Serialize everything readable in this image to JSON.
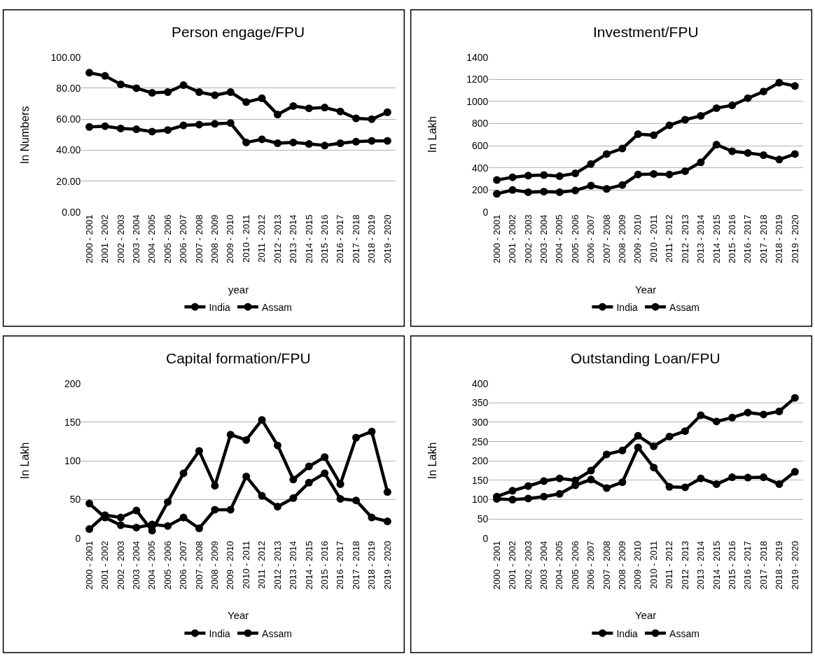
{
  "chart_data": [
    {
      "type": "line",
      "title": "Person engage/FPU",
      "xlabel": "year",
      "ylabel": "In Numbers",
      "categories": [
        "2000 - 2001",
        "2001 - 2002",
        "2002 - 2003",
        "2003 - 2004",
        "2004 - 2005",
        "2005 - 2006",
        "2006 - 2007",
        "2007 - 2008",
        "2008 - 2009",
        "2009 - 2010",
        "2010 - 2011",
        "2011 - 2012",
        "2012 - 2013",
        "2013 - 2014",
        "2014 - 2015",
        "2015 - 2016",
        "2016 - 2017",
        "2017 - 2018",
        "2018 - 2019",
        "2019 - 2020"
      ],
      "ylim": [
        0,
        100
      ],
      "yticks": [
        {
          "value": 0,
          "label": "0.00"
        },
        {
          "value": 20,
          "label": "20.00"
        },
        {
          "value": 40,
          "label": "40.00"
        },
        {
          "value": 60,
          "label": "60.00"
        },
        {
          "value": 80,
          "label": "80.00"
        },
        {
          "value": 100,
          "label": "100.00"
        }
      ],
      "grid": "y",
      "legend": "bottom",
      "marker": "circle",
      "line_style": "solid",
      "series": [
        {
          "name": "India",
          "color": "#000000",
          "values": [
            90,
            88,
            82.5,
            80,
            77,
            77.5,
            82,
            77.5,
            75.5,
            77.5,
            71,
            73.5,
            63,
            68.5,
            67,
            67.5,
            65,
            60.5,
            60,
            64.5
          ]
        },
        {
          "name": "Assam",
          "color": "#000000",
          "values": [
            55,
            55.5,
            54,
            53.5,
            52,
            53,
            56,
            56.5,
            57,
            57.5,
            45,
            47,
            44.5,
            45,
            44,
            43,
            44.5,
            45.5,
            46,
            46
          ]
        }
      ]
    },
    {
      "type": "line",
      "title": "Investment/FPU",
      "xlabel": "Year",
      "ylabel": "In Lakh",
      "categories": [
        "2000 - 2001",
        "2001 - 2002",
        "2002 - 2003",
        "2003 - 2004",
        "2004 - 2005",
        "2005 - 2006",
        "2006 - 2007",
        "2007 - 2008",
        "2008 - 2009",
        "2009 - 2010",
        "2010 - 2011",
        "2011 - 2012",
        "2012 - 2013",
        "2013 - 2014",
        "2014 - 2015",
        "2015 - 2016",
        "2016 - 2017",
        "2017 - 2018",
        "2018 - 2019",
        "2019 - 2020"
      ],
      "ylim": [
        0,
        1400
      ],
      "yticks": [
        0,
        200,
        400,
        600,
        800,
        1000,
        1200,
        1400
      ],
      "grid": "y",
      "legend": "bottom",
      "marker": "circle",
      "line_style": "solid",
      "series": [
        {
          "name": "India",
          "color": "#000000",
          "values": [
            290,
            315,
            330,
            335,
            325,
            350,
            435,
            525,
            575,
            705,
            695,
            785,
            835,
            870,
            940,
            965,
            1030,
            1090,
            1170,
            1140
          ]
        },
        {
          "name": "Assam",
          "color": "#000000",
          "values": [
            165,
            200,
            180,
            185,
            180,
            195,
            240,
            210,
            245,
            340,
            345,
            340,
            370,
            450,
            610,
            550,
            535,
            515,
            475,
            525
          ]
        }
      ]
    },
    {
      "type": "line",
      "title": "Capital formation/FPU",
      "xlabel": "Year",
      "ylabel": "In Lakh",
      "categories": [
        "2000 - 2001",
        "2001 - 2002",
        "2002 - 2003",
        "2003 - 2004",
        "2004 - 2005",
        "2005 - 2006",
        "2006 - 2007",
        "2007 - 2008",
        "2008 - 2009",
        "2009 - 2010",
        "2010 - 2011",
        "2011 - 2012",
        "2012 - 2013",
        "2013 - 2014",
        "2014 - 2015",
        "2015 - 2016",
        "2016 - 2017",
        "2017 - 2018",
        "2018 - 2019",
        "2019 - 2020"
      ],
      "ylim": [
        0,
        200
      ],
      "yticks": [
        0,
        50,
        100,
        150,
        200
      ],
      "grid": "y",
      "legend": "bottom",
      "marker": "circle",
      "line_style": "solid",
      "series": [
        {
          "name": "India",
          "color": "#000000",
          "values": [
            12,
            30,
            27,
            36,
            10,
            47,
            84,
            113,
            68,
            134,
            127,
            153,
            120,
            76,
            93,
            105,
            70,
            130,
            138,
            60
          ]
        },
        {
          "name": "Assam",
          "color": "#000000",
          "values": [
            45,
            27,
            17,
            14,
            18,
            16,
            27,
            13,
            37,
            37,
            80,
            55,
            41,
            52,
            72,
            84,
            51,
            49,
            27,
            22
          ]
        }
      ]
    },
    {
      "type": "line",
      "title": "Outstanding Loan/FPU",
      "xlabel": "Year",
      "ylabel": "In Lakh",
      "categories": [
        "2000 - 2001",
        "2001 - 2002",
        "2002 - 2003",
        "2003 - 2004",
        "2004 - 2005",
        "2005 - 2006",
        "2006 - 2007",
        "2007 - 2008",
        "2008 - 2009",
        "2009 - 2010",
        "2010 - 2011",
        "2011 - 2012",
        "2012 - 2013",
        "2013 - 2014",
        "2014 - 2015",
        "2015 - 2016",
        "2016 - 2017",
        "2017 - 2018",
        "2018 - 2019",
        "2019 - 2020"
      ],
      "ylim": [
        0,
        400
      ],
      "yticks": [
        0,
        50,
        100,
        150,
        200,
        250,
        300,
        350,
        400
      ],
      "grid": "y",
      "legend": "bottom",
      "marker": "circle",
      "line_style": "solid",
      "series": [
        {
          "name": "India",
          "color": "#000000",
          "values": [
            108,
            123,
            135,
            148,
            155,
            150,
            175,
            217,
            227,
            265,
            238,
            263,
            277,
            318,
            302,
            312,
            325,
            320,
            328,
            363
          ]
        },
        {
          "name": "Assam",
          "color": "#000000",
          "values": [
            102,
            100,
            103,
            108,
            115,
            137,
            152,
            130,
            145,
            235,
            183,
            133,
            132,
            155,
            140,
            158,
            157,
            158,
            140,
            172
          ]
        }
      ]
    }
  ]
}
